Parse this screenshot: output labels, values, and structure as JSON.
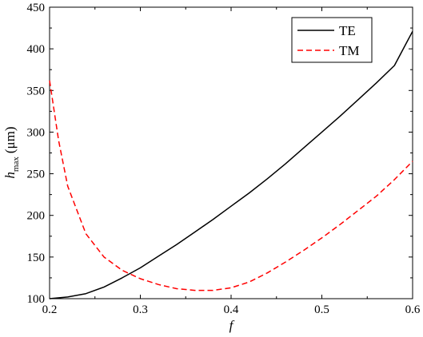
{
  "chart_data": {
    "type": "line",
    "xlabel": "f",
    "ylabel": {
      "main": "h",
      "subscript": "max",
      "unit": "(μm)"
    },
    "xlim": [
      0.2,
      0.6
    ],
    "ylim": [
      100,
      450
    ],
    "x_ticks": [
      0.2,
      0.3,
      0.4,
      0.5,
      0.6
    ],
    "x_tick_labels": [
      "0.2",
      "0.3",
      "0.4",
      "0.5",
      "0.6"
    ],
    "y_ticks": [
      100,
      150,
      200,
      250,
      300,
      350,
      400,
      450
    ],
    "y_tick_labels": [
      "100",
      "150",
      "200",
      "250",
      "300",
      "350",
      "400",
      "450"
    ],
    "grid": false,
    "legend_position": "top-right",
    "series": [
      {
        "name": "TE",
        "color": "#000000",
        "style": "solid",
        "x": [
          0.2,
          0.22,
          0.24,
          0.26,
          0.28,
          0.3,
          0.32,
          0.34,
          0.36,
          0.38,
          0.4,
          0.42,
          0.44,
          0.46,
          0.48,
          0.5,
          0.52,
          0.54,
          0.56,
          0.58,
          0.6
        ],
        "y": [
          100,
          102,
          106,
          114,
          125,
          137,
          151,
          165,
          180,
          195,
          211,
          227,
          244,
          262,
          281,
          300,
          319,
          339,
          359,
          380,
          421
        ]
      },
      {
        "name": "TM",
        "color": "#ff0000",
        "style": "dashed",
        "x": [
          0.2,
          0.21,
          0.22,
          0.24,
          0.26,
          0.28,
          0.3,
          0.32,
          0.34,
          0.36,
          0.38,
          0.4,
          0.42,
          0.44,
          0.46,
          0.48,
          0.5,
          0.52,
          0.54,
          0.56,
          0.58,
          0.6
        ],
        "y": [
          362,
          290,
          235,
          178,
          150,
          134,
          124,
          117,
          112,
          110,
          110,
          113,
          120,
          131,
          144,
          158,
          173,
          189,
          206,
          223,
          243,
          265
        ]
      }
    ]
  }
}
